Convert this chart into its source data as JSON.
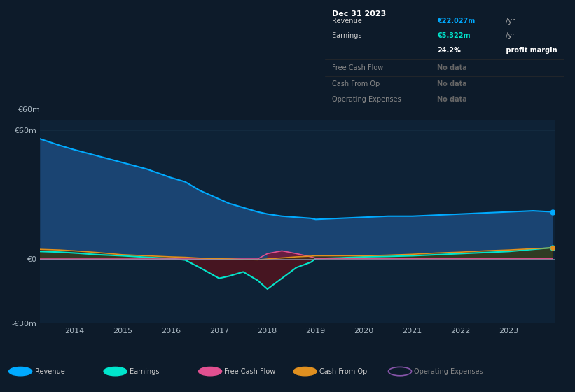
{
  "background_color": "#0d1b2a",
  "plot_bg_color": "#0e2236",
  "grid_color": "#1e3a50",
  "text_color": "#aab8c2",
  "ylim": [
    -30,
    65
  ],
  "ytick_labels": [
    "-€30m",
    "€0",
    "€60m"
  ],
  "years": [
    2013.3,
    2013.7,
    2014.0,
    2014.5,
    2015.0,
    2015.5,
    2016.0,
    2016.3,
    2016.6,
    2017.0,
    2017.2,
    2017.5,
    2017.8,
    2018.0,
    2018.3,
    2018.6,
    2018.9,
    2019.0,
    2019.5,
    2020.0,
    2020.5,
    2021.0,
    2021.5,
    2022.0,
    2022.5,
    2023.0,
    2023.5,
    2023.9
  ],
  "revenue": [
    56,
    53,
    51,
    48,
    45,
    42,
    38,
    36,
    32,
    28,
    26,
    24,
    22,
    21,
    20,
    19.5,
    19,
    18.5,
    19,
    19.5,
    20,
    20,
    20.5,
    21,
    21.5,
    22,
    22.5,
    22.0
  ],
  "earnings": [
    3.5,
    3.2,
    2.8,
    2.0,
    1.5,
    0.8,
    0.2,
    -0.5,
    -4,
    -9,
    -8,
    -6,
    -10,
    -14,
    -9,
    -4,
    -1.5,
    0.2,
    0.5,
    1.0,
    1.2,
    1.5,
    2.0,
    2.5,
    3.0,
    3.5,
    4.5,
    5.3
  ],
  "free_cash_flow": [
    0,
    0,
    0,
    0,
    0,
    0,
    0,
    0,
    0,
    0,
    0,
    0,
    0,
    2.5,
    3.8,
    2.5,
    1.0,
    0.3,
    0.3,
    0.3,
    0.3,
    0.3,
    0.3,
    0.3,
    0.3,
    0.3,
    0.3,
    0.3
  ],
  "cash_from_op": [
    4.5,
    4.2,
    3.8,
    3.0,
    2.0,
    1.5,
    1.0,
    0.8,
    0.4,
    0.1,
    0.0,
    -0.3,
    -0.4,
    0.0,
    0.5,
    1.0,
    1.3,
    1.5,
    1.5,
    1.5,
    1.8,
    2.2,
    2.8,
    3.2,
    3.8,
    4.2,
    4.8,
    5.2
  ],
  "revenue_color": "#00aaff",
  "revenue_fill": "#1a4472",
  "earnings_color": "#00e5cc",
  "earnings_fill_pos": "#1a5a4a",
  "earnings_fill_neg": "#4a1520",
  "free_cash_flow_color": "#e05090",
  "free_cash_flow_fill": "#7a1535",
  "cash_from_op_color": "#e09020",
  "cash_from_op_fill": "#3a3010",
  "operating_expenses_color": "#8855aa",
  "info_box_bg": "#0a0a0a",
  "info_box_border": "#2a2a2a",
  "info_box_divider": "#2a2a2a",
  "legend_box_bg": "#12202e",
  "legend_box_border": "#2a3a4a",
  "info_box": {
    "title": "Dec 31 2023",
    "rows": [
      {
        "label": "Revenue",
        "value": "€22.027m",
        "unit": " /yr",
        "value_color": "#00aaff"
      },
      {
        "label": "Earnings",
        "value": "€5.322m",
        "unit": " /yr",
        "value_color": "#00e5cc"
      },
      {
        "label": "",
        "value": "24.2%",
        "unit": " profit margin",
        "value_color": "#ffffff",
        "unit_color": "#ffffff",
        "bold_unit": true
      },
      {
        "label": "Free Cash Flow",
        "value": "No data",
        "unit": "",
        "value_color": "#666666"
      },
      {
        "label": "Cash From Op",
        "value": "No data",
        "unit": "",
        "value_color": "#666666"
      },
      {
        "label": "Operating Expenses",
        "value": "No data",
        "unit": "",
        "value_color": "#666666"
      }
    ]
  },
  "legend_items": [
    {
      "label": "Revenue",
      "color": "#00aaff",
      "open": false
    },
    {
      "label": "Earnings",
      "color": "#00e5cc",
      "open": false
    },
    {
      "label": "Free Cash Flow",
      "color": "#e05090",
      "open": false
    },
    {
      "label": "Cash From Op",
      "color": "#e09020",
      "open": false
    },
    {
      "label": "Operating Expenses",
      "color": "#8855aa",
      "open": true
    }
  ]
}
